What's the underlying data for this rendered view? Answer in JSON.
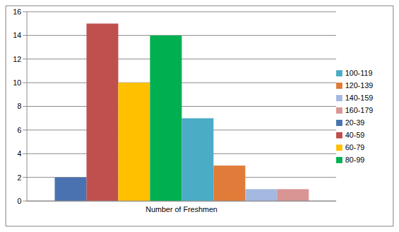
{
  "chart_data": {
    "type": "bar",
    "categories": [
      "Number of Freshmen"
    ],
    "series": [
      {
        "name": "20-39",
        "color": "#4a72b0",
        "values": [
          2
        ]
      },
      {
        "name": "40-59",
        "color": "#c0504d",
        "values": [
          15
        ]
      },
      {
        "name": "60-79",
        "color": "#ffc000",
        "values": [
          10
        ]
      },
      {
        "name": "80-99",
        "color": "#00b050",
        "values": [
          14
        ]
      },
      {
        "name": "100-119",
        "color": "#4bacc6",
        "values": [
          7
        ]
      },
      {
        "name": "120-139",
        "color": "#e07b39",
        "values": [
          3
        ]
      },
      {
        "name": "140-159",
        "color": "#a5b8e0",
        "values": [
          1
        ]
      },
      {
        "name": "160-179",
        "color": "#d99594",
        "values": [
          1
        ]
      }
    ],
    "ylim": [
      0,
      16
    ],
    "yticks": [
      0,
      2,
      4,
      6,
      8,
      10,
      12,
      14,
      16
    ],
    "grid": true,
    "legend": "right"
  }
}
